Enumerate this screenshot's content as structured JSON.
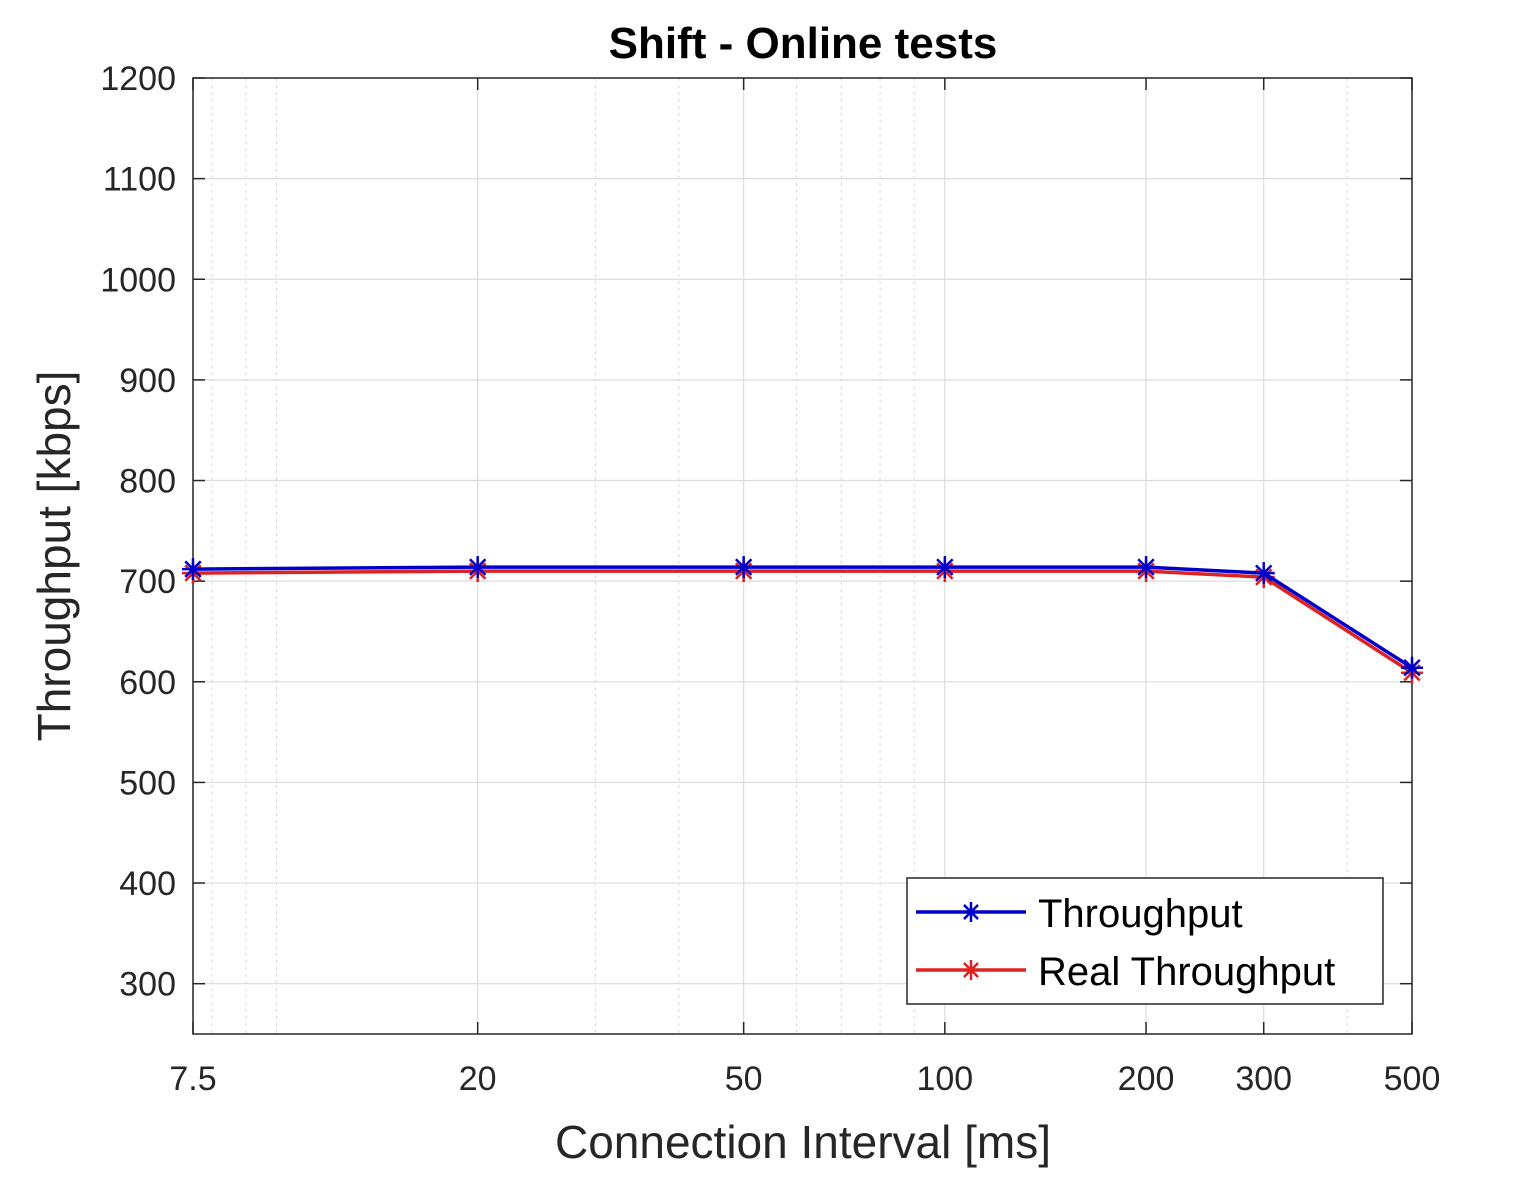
{
  "chart_data": {
    "type": "line",
    "title": "Shift - Online tests",
    "xlabel": "Connection Interval [ms]",
    "ylabel": "Throughput [kbps]",
    "x_scale": "log",
    "x": [
      7.5,
      20,
      50,
      100,
      200,
      300,
      500
    ],
    "x_tick_labels": [
      "7.5",
      "20",
      "50",
      "100",
      "200",
      "300",
      "500"
    ],
    "xlim": [
      7.5,
      500
    ],
    "ylim": [
      250,
      1200
    ],
    "y_ticks": [
      300,
      400,
      500,
      600,
      700,
      800,
      900,
      1000,
      1100,
      1200
    ],
    "y_tick_labels": [
      "300",
      "400",
      "500",
      "600",
      "700",
      "800",
      "900",
      "1000",
      "1100",
      "1200"
    ],
    "grid": true,
    "minor_grid": true,
    "legend_position": "bottom-right",
    "marker": "asterisk",
    "series": [
      {
        "name": "Throughput",
        "color": "#0000cc",
        "values": [
          712,
          714,
          714,
          714,
          714,
          708,
          614
        ]
      },
      {
        "name": "Real Throughput",
        "color": "#dd2222",
        "values": [
          708,
          710,
          710,
          710,
          710,
          704,
          609
        ]
      }
    ]
  }
}
